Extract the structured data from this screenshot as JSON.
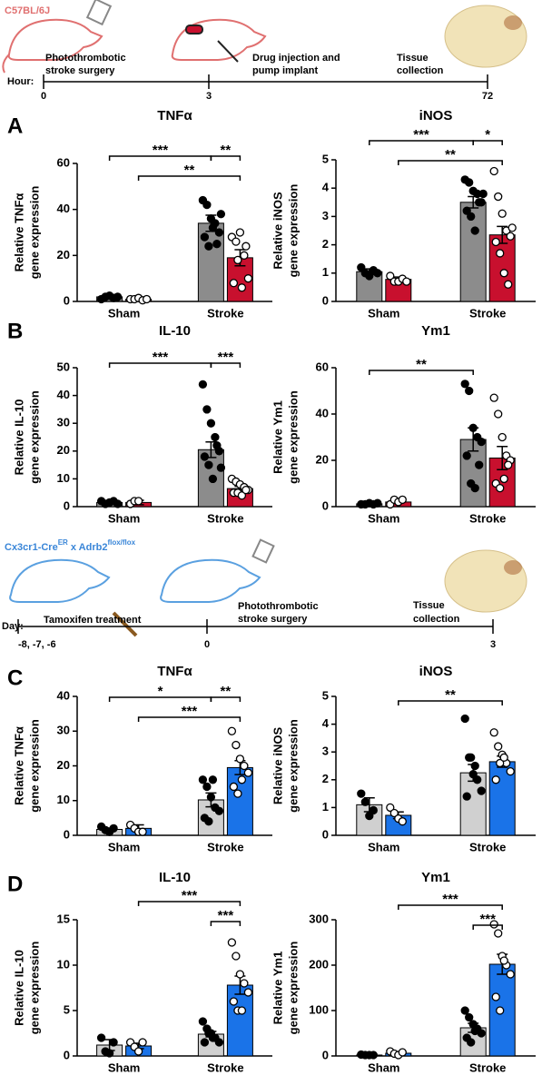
{
  "panel_labels": [
    "A",
    "B",
    "C",
    "D"
  ],
  "timelines": [
    {
      "strain": [
        "C57BL/6J"
      ],
      "axis_label": "Hour:",
      "ticks": [
        "0",
        "3",
        "72"
      ],
      "events": [
        [
          "Photothrombotic",
          "stroke surgery"
        ],
        [
          "Drug injection and",
          "pump implant"
        ],
        [
          "Tissue",
          "collection"
        ]
      ]
    },
    {
      "strain": [
        "Cx3cr1-Cre",
        "ER",
        " x Adrb2",
        "flox/flox"
      ],
      "axis_label": "Day:",
      "ticks": [
        "-8, -7, -6",
        "0",
        "3"
      ],
      "events": [
        [
          "Tamoxifen treatment"
        ],
        [
          "Photothrombotic",
          "stroke surgery"
        ],
        [
          "Tissue",
          "collection"
        ]
      ]
    }
  ],
  "chart_data": [
    {
      "type": "bar",
      "title": "TNFα",
      "ylabel": [
        "Relative TNFα",
        "gene expression"
      ],
      "categories": [
        "Sham",
        "Stroke"
      ],
      "ylim": [
        0,
        60
      ],
      "yticks": [
        0,
        20,
        40,
        60
      ],
      "series": [
        {
          "color": "#8c8c8c",
          "point_color": "#000000",
          "values": [
            2,
            34
          ],
          "errors": [
            0.5,
            3.5
          ],
          "points": [
            [
              1,
              2,
              2.5,
              1.5,
              2
            ],
            [
              44,
              42,
              36,
              34,
              30,
              28,
              24,
              32,
              25,
              38
            ]
          ]
        },
        {
          "color": "#c8102e",
          "point_color": "#ffffff",
          "values": [
            1,
            19
          ],
          "errors": [
            0.3,
            3.5
          ],
          "points": [
            [
              1,
              1,
              1.5,
              0.5,
              1
            ],
            [
              28,
              26,
              30,
              20,
              10,
              8,
              18,
              6,
              24
            ]
          ]
        }
      ],
      "brackets": [
        {
          "label": "***",
          "bars": [
            0,
            2
          ]
        },
        {
          "label": "**",
          "bars": [
            2,
            3
          ]
        },
        {
          "label": "**",
          "bars": [
            1,
            3
          ]
        }
      ]
    },
    {
      "type": "bar",
      "title": "iNOS",
      "ylabel": [
        "Relative iNOS",
        "gene expression"
      ],
      "categories": [
        "Sham",
        "Stroke"
      ],
      "ylim": [
        0,
        5
      ],
      "yticks": [
        0,
        1,
        2,
        3,
        4,
        5
      ],
      "series": [
        {
          "color": "#8c8c8c",
          "point_color": "#000000",
          "values": [
            1.05,
            3.5
          ],
          "errors": [
            0.1,
            0.2
          ],
          "points": [
            [
              1.2,
              1.0,
              0.9,
              1.1,
              1.0
            ],
            [
              4.3,
              4.2,
              3.9,
              3.8,
              3.5,
              3.2,
              3.0,
              2.5,
              3.5,
              3.8
            ]
          ]
        },
        {
          "color": "#c8102e",
          "point_color": "#ffffff",
          "values": [
            0.78,
            2.35
          ],
          "errors": [
            0.08,
            0.3
          ],
          "points": [
            [
              0.9,
              0.7,
              0.7,
              0.8,
              0.7
            ],
            [
              4.6,
              3.7,
              3.1,
              2.5,
              2.3,
              2.1,
              1.7,
              1.0,
              0.6,
              2.6
            ]
          ]
        }
      ],
      "brackets": [
        {
          "label": "***",
          "bars": [
            0,
            2
          ]
        },
        {
          "label": "*",
          "bars": [
            2,
            3
          ]
        },
        {
          "label": "**",
          "bars": [
            1,
            3
          ]
        }
      ]
    },
    {
      "type": "bar",
      "title": "IL-10",
      "ylabel": [
        "Relative IL-10",
        "gene expression"
      ],
      "categories": [
        "Sham",
        "Stroke"
      ],
      "ylim": [
        0,
        50
      ],
      "yticks": [
        0,
        10,
        20,
        30,
        40,
        50
      ],
      "series": [
        {
          "color": "#8c8c8c",
          "point_color": "#000000",
          "values": [
            1.5,
            20.5
          ],
          "errors": [
            0.4,
            2.8
          ],
          "points": [
            [
              2,
              1,
              1.5,
              2,
              1
            ],
            [
              44,
              35,
              30,
              25,
              20,
              18,
              15,
              10,
              22,
              14
            ]
          ]
        },
        {
          "color": "#c8102e",
          "point_color": "#ffffff",
          "values": [
            1.5,
            6.5
          ],
          "errors": [
            0.8,
            0.8
          ],
          "points": [
            [
              1,
              2,
              2
            ],
            [
              10,
              9,
              8,
              7,
              6,
              5,
              5,
              4,
              6
            ]
          ]
        }
      ],
      "brackets": [
        {
          "label": "***",
          "bars": [
            0,
            2
          ]
        },
        {
          "label": "***",
          "bars": [
            2,
            3
          ]
        }
      ]
    },
    {
      "type": "bar",
      "title": "Ym1",
      "ylabel": [
        "Relative Ym1",
        "gene expression"
      ],
      "categories": [
        "Sham",
        "Stroke"
      ],
      "ylim": [
        0,
        60
      ],
      "yticks": [
        0,
        20,
        40,
        60
      ],
      "series": [
        {
          "color": "#8c8c8c",
          "point_color": "#000000",
          "values": [
            1.2,
            29
          ],
          "errors": [
            0.3,
            5
          ],
          "points": [
            [
              1,
              1,
              1.5,
              1,
              1.5
            ],
            [
              53,
              50,
              34,
              30,
              28,
              22,
              10,
              8,
              18
            ]
          ]
        },
        {
          "color": "#c8102e",
          "point_color": "#ffffff",
          "values": [
            2,
            21
          ],
          "errors": [
            0.5,
            5
          ],
          "points": [
            [
              1,
              3,
              2,
              3
            ],
            [
              47,
              40,
              30,
              22,
              20,
              10,
              8,
              12,
              18
            ]
          ]
        }
      ],
      "brackets": [
        {
          "label": "**",
          "bars": [
            0,
            2
          ]
        }
      ]
    },
    {
      "type": "bar",
      "title": "TNFα",
      "ylabel": [
        "Relative TNFα",
        "gene expression"
      ],
      "categories": [
        "Sham",
        "Stroke"
      ],
      "ylim": [
        0,
        40
      ],
      "yticks": [
        0,
        10,
        20,
        30,
        40
      ],
      "series": [
        {
          "color": "#d0d0d0",
          "point_color": "#000000",
          "values": [
            1.7,
            10.2
          ],
          "errors": [
            0.4,
            2
          ],
          "points": [
            [
              2.5,
              1.5,
              1,
              2
            ],
            [
              16,
              14,
              11,
              8,
              7,
              5,
              4,
              16
            ]
          ]
        },
        {
          "color": "#1a73e8",
          "point_color": "#ffffff",
          "values": [
            2,
            19.5
          ],
          "errors": [
            1,
            2
          ],
          "points": [
            [
              3,
              2,
              1,
              1
            ],
            [
              30,
              26,
              22,
              20,
              18,
              14,
              12,
              16
            ]
          ]
        }
      ],
      "brackets": [
        {
          "label": "*",
          "bars": [
            0,
            2
          ]
        },
        {
          "label": "**",
          "bars": [
            2,
            3
          ]
        },
        {
          "label": "***",
          "bars": [
            1,
            3
          ]
        }
      ]
    },
    {
      "type": "bar",
      "title": "iNOS",
      "ylabel": [
        "Relative iNOS",
        "gene expression"
      ],
      "categories": [
        "Sham",
        "Stroke"
      ],
      "ylim": [
        0,
        5
      ],
      "yticks": [
        0,
        1,
        2,
        3,
        4,
        5
      ],
      "series": [
        {
          "color": "#d0d0d0",
          "point_color": "#000000",
          "values": [
            1.1,
            2.25
          ],
          "errors": [
            0.25,
            0.3
          ],
          "points": [
            [
              1.5,
              1.2,
              0.7,
              0.9
            ],
            [
              4.2,
              2.8,
              2.2,
              2.0,
              1.6,
              1.4,
              2.8,
              2.5
            ]
          ]
        },
        {
          "color": "#1a73e8",
          "point_color": "#ffffff",
          "values": [
            0.72,
            2.65
          ],
          "errors": [
            0.12,
            0.2
          ],
          "points": [
            [
              1.0,
              0.8,
              0.6,
              0.5
            ],
            [
              3.7,
              3.2,
              2.9,
              2.6,
              2.3,
              2.0,
              2.6,
              2.8
            ]
          ]
        }
      ],
      "brackets": [
        {
          "label": "**",
          "bars": [
            1,
            3
          ]
        }
      ]
    },
    {
      "type": "bar",
      "title": "IL-10",
      "ylabel": [
        "Relative IL-10",
        "gene expression"
      ],
      "categories": [
        "Sham",
        "Stroke"
      ],
      "ylim": [
        0,
        15
      ],
      "yticks": [
        0,
        5,
        10,
        15
      ],
      "series": [
        {
          "color": "#d0d0d0",
          "point_color": "#000000",
          "values": [
            1.2,
            2.4
          ],
          "errors": [
            0.6,
            0.3
          ],
          "points": [
            [
              2,
              0.5,
              0.3,
              1.5
            ],
            [
              3.8,
              3,
              2.5,
              2,
              1.5,
              1.5,
              2.5,
              2
            ]
          ]
        },
        {
          "color": "#1a73e8",
          "point_color": "#ffffff",
          "values": [
            1.1,
            7.8
          ],
          "errors": [
            0.3,
            1
          ],
          "points": [
            [
              1.5,
              1,
              0.5,
              1.5
            ],
            [
              12.5,
              11,
              9,
              8,
              7,
              6,
              5,
              5
            ]
          ]
        }
      ],
      "brackets": [
        {
          "label": "***",
          "bars": [
            1,
            3
          ]
        },
        {
          "label": "***",
          "bars": [
            2,
            3
          ]
        }
      ]
    },
    {
      "type": "bar",
      "title": "Ym1",
      "ylabel": [
        "Relative Ym1",
        "gene expression"
      ],
      "categories": [
        "Sham",
        "Stroke"
      ],
      "ylim": [
        0,
        300
      ],
      "yticks": [
        0,
        100,
        200,
        300
      ],
      "series": [
        {
          "color": "#d0d0d0",
          "point_color": "#000000",
          "values": [
            2,
            62
          ],
          "errors": [
            1,
            10
          ],
          "points": [
            [
              3,
              2,
              2,
              2
            ],
            [
              100,
              85,
              70,
              60,
              50,
              40,
              30,
              55
            ]
          ]
        },
        {
          "color": "#1a73e8",
          "point_color": "#ffffff",
          "values": [
            6,
            202
          ],
          "errors": [
            3,
            22
          ],
          "points": [
            [
              10,
              5,
              2,
              8
            ],
            [
              290,
              270,
              220,
              200,
              180,
              130,
              100,
              210
            ]
          ]
        }
      ],
      "brackets": [
        {
          "label": "***",
          "bars": [
            1,
            3
          ]
        },
        {
          "label": "***",
          "bars": [
            2,
            3
          ]
        }
      ]
    }
  ]
}
